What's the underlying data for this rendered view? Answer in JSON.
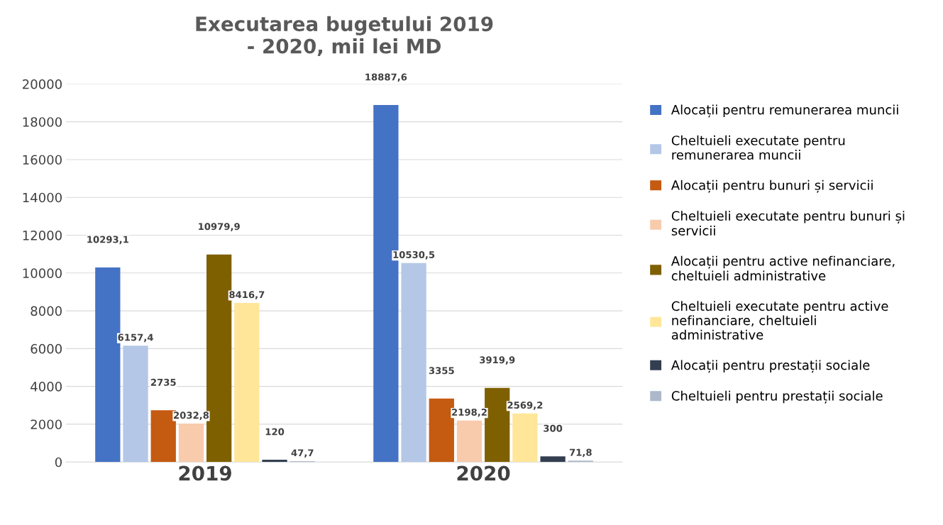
{
  "chart_data": {
    "type": "bar",
    "title": "Executarea bugetului 2019 - 2020, mii lei MD",
    "categories": [
      "2019",
      "2020"
    ],
    "series": [
      {
        "name": "Alocații pentru remunerarea muncii",
        "color": "#4472c4",
        "values": [
          10293.1,
          18887.6
        ],
        "value_labels": [
          "10293,1",
          "18887,6"
        ]
      },
      {
        "name": "Cheltuieli executate pentru remunerarea muncii",
        "color": "#b4c7e7",
        "values": [
          6157.4,
          10530.5
        ],
        "value_labels": [
          "6157,4",
          "10530,5"
        ]
      },
      {
        "name": "Alocații pentru bunuri și servicii",
        "color": "#c55a11",
        "values": [
          2735,
          3355
        ],
        "value_labels": [
          "2735",
          "3355"
        ]
      },
      {
        "name": "Cheltuieli executate pentru bunuri și servicii",
        "color": "#f8cbad",
        "values": [
          2032.8,
          2198.2
        ],
        "value_labels": [
          "2032,8",
          "2198,2"
        ]
      },
      {
        "name": "Alocații pentru active nefinanciare, cheltuieli administrative",
        "color": "#7f6000",
        "values": [
          10979.9,
          3919.9
        ],
        "value_labels": [
          "10979,9",
          "3919,9"
        ]
      },
      {
        "name": "Cheltuieli executate pentru active nefinanciare, cheltuieli administrative",
        "color": "#ffe699",
        "values": [
          8416.7,
          2569.2
        ],
        "value_labels": [
          "8416,7",
          "2569,2"
        ]
      },
      {
        "name": "Alocații pentru prestații sociale",
        "color": "#333f50",
        "values": [
          120,
          300
        ],
        "value_labels": [
          "120",
          "300"
        ]
      },
      {
        "name": "Cheltuieli pentru prestații sociale",
        "color": "#adb9ca",
        "values": [
          47.7,
          71.8
        ],
        "value_labels": [
          "47,7",
          "71,8"
        ]
      }
    ],
    "ylim": [
      0,
      20000
    ],
    "yticks": [
      0,
      2000,
      4000,
      6000,
      8000,
      10000,
      12000,
      14000,
      16000,
      18000,
      20000
    ],
    "grid": "y",
    "legend": "right"
  }
}
